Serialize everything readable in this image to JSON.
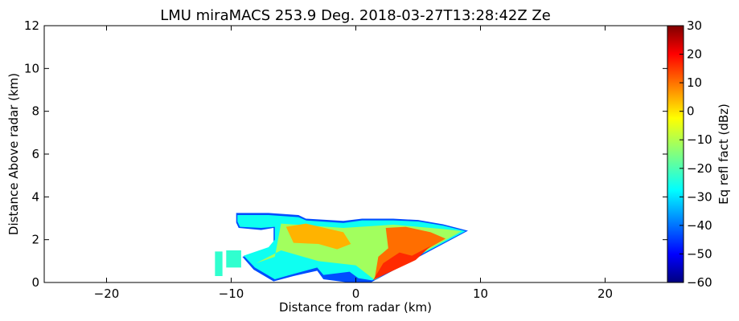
{
  "chart_data": {
    "type": "heatmap",
    "title": "LMU miraMACS 253.9 Deg. 2018-03-27T13:28:42Z  Ze",
    "xlabel": "Distance from radar (km)",
    "ylabel": "Distance Above radar  (km)",
    "xlim": [
      -25,
      25
    ],
    "ylim": [
      0,
      12
    ],
    "xticks": [
      -20,
      -10,
      0,
      10,
      20
    ],
    "yticks": [
      0,
      2,
      4,
      6,
      8,
      10,
      12
    ],
    "colorbar": {
      "label": "Eq refl fact (dBz)",
      "range": [
        -60,
        30
      ],
      "ticks": [
        -60,
        -50,
        -40,
        -30,
        -20,
        -10,
        0,
        10,
        20,
        30
      ],
      "colormap": "jet"
    },
    "regions": [
      {
        "name": "envelope",
        "value": -42,
        "points": [
          [
            -9.6,
            2.8
          ],
          [
            -9.6,
            3.25
          ],
          [
            -7,
            3.25
          ],
          [
            -4.6,
            3.15
          ],
          [
            -4,
            2.98
          ],
          [
            -1,
            2.88
          ],
          [
            0.5,
            2.98
          ],
          [
            3,
            2.98
          ],
          [
            5,
            2.92
          ],
          [
            7,
            2.72
          ],
          [
            9,
            2.42
          ],
          [
            1.2,
            0.0
          ],
          [
            0.3,
            0.0
          ],
          [
            -0.6,
            0.0
          ],
          [
            -2.6,
            0.15
          ],
          [
            -3.1,
            0.55
          ],
          [
            -5,
            0.3
          ],
          [
            -6.6,
            0.05
          ],
          [
            -8.2,
            0.6
          ],
          [
            -9.1,
            1.2
          ],
          [
            -7,
            1.55
          ],
          [
            -6.6,
            1.9
          ],
          [
            -6.6,
            2.55
          ],
          [
            -7.6,
            2.45
          ],
          [
            -9.4,
            2.55
          ]
        ]
      },
      {
        "name": "outer-echo",
        "value": -25,
        "points": [
          [
            -9.5,
            2.85
          ],
          [
            -9.5,
            3.15
          ],
          [
            -7,
            3.15
          ],
          [
            -4.6,
            3.05
          ],
          [
            -4,
            2.9
          ],
          [
            -1,
            2.78
          ],
          [
            0.5,
            2.9
          ],
          [
            3,
            2.9
          ],
          [
            5,
            2.85
          ],
          [
            7,
            2.66
          ],
          [
            8.8,
            2.4
          ],
          [
            1.3,
            0.1
          ],
          [
            0.2,
            0.2
          ],
          [
            -0.5,
            0.5
          ],
          [
            -2.6,
            0.35
          ],
          [
            -3.1,
            0.7
          ],
          [
            -5,
            0.4
          ],
          [
            -6.5,
            0.15
          ],
          [
            -8.1,
            0.7
          ],
          [
            -9,
            1.25
          ],
          [
            -7,
            1.65
          ],
          [
            -6.5,
            2.0
          ],
          [
            -6.5,
            2.6
          ],
          [
            -7.6,
            2.55
          ],
          [
            -9.3,
            2.6
          ]
        ]
      },
      {
        "name": "patch-left-1",
        "value": -22,
        "points": [
          [
            -11.3,
            0.3
          ],
          [
            -10.7,
            0.3
          ],
          [
            -10.7,
            1.45
          ],
          [
            -11.3,
            1.45
          ]
        ]
      },
      {
        "name": "patch-left-2",
        "value": -22,
        "points": [
          [
            -10.4,
            0.7
          ],
          [
            -9.2,
            0.7
          ],
          [
            -9.2,
            1.5
          ],
          [
            -10.4,
            1.5
          ]
        ]
      },
      {
        "name": "green-core",
        "value": -12,
        "points": [
          [
            -6,
            2.75
          ],
          [
            -1,
            2.55
          ],
          [
            3,
            2.7
          ],
          [
            7,
            2.5
          ],
          [
            8.5,
            2.4
          ],
          [
            1.5,
            0.12
          ],
          [
            0,
            0.8
          ],
          [
            -3,
            1.0
          ],
          [
            -6,
            1.5
          ],
          [
            -8,
            0.9
          ],
          [
            -6.5,
            1.2
          ]
        ]
      },
      {
        "name": "yellow-core-left",
        "value": 3,
        "points": [
          [
            -5.6,
            2.6
          ],
          [
            -4,
            2.75
          ],
          [
            -1,
            2.35
          ],
          [
            -0.4,
            1.8
          ],
          [
            -1.5,
            1.55
          ],
          [
            -3,
            1.8
          ],
          [
            -5,
            1.85
          ]
        ]
      },
      {
        "name": "orange-core-right",
        "value": 9,
        "points": [
          [
            2.4,
            2.55
          ],
          [
            4,
            2.6
          ],
          [
            6,
            2.35
          ],
          [
            7.2,
            2.05
          ],
          [
            1.5,
            0.15
          ],
          [
            1.8,
            1.2
          ],
          [
            2.6,
            1.6
          ]
        ]
      },
      {
        "name": "deep-orange-core",
        "value": 15,
        "points": [
          [
            1.4,
            0.12
          ],
          [
            2.2,
            0.9
          ],
          [
            3.5,
            1.4
          ],
          [
            4.5,
            1.25
          ],
          [
            6,
            1.7
          ],
          [
            4.8,
            1.05
          ]
        ]
      }
    ]
  }
}
